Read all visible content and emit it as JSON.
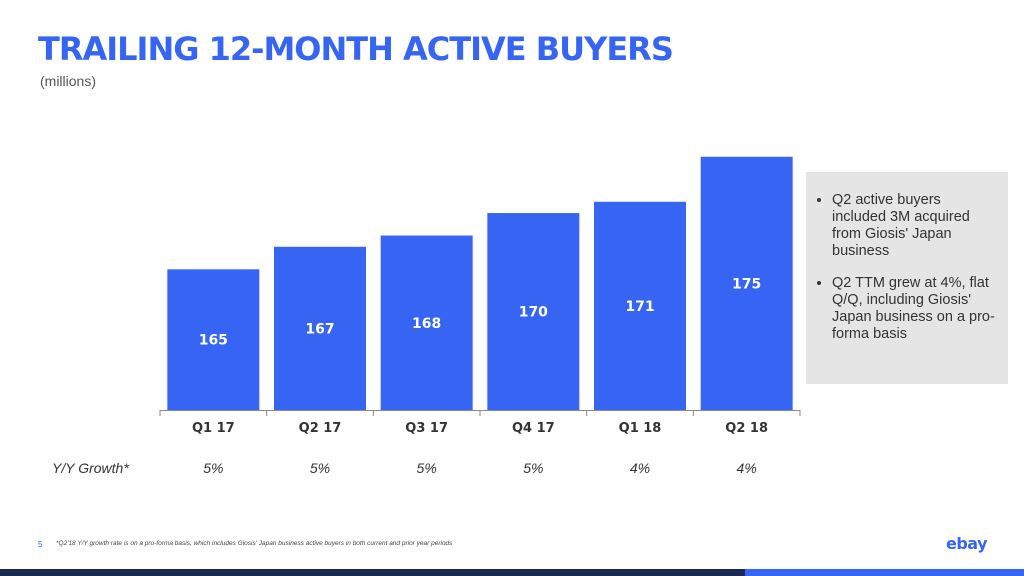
{
  "page": {
    "title": "TRAILING 12-MONTH ACTIVE BUYERS",
    "subtitle": "(millions)",
    "page_number": "5",
    "footnote": "*Q2'18 Y/Y growth rate is on a pro-forma basis, which includes Giosis' Japan business active buyers in both current and prior year periods",
    "logo": "ebay"
  },
  "notes": {
    "items": [
      "Q2 active buyers included 3M acquired from Giosis' Japan business",
      "Q2 TTM grew at 4%, flat Q/Q, including Giosis' Japan business on a pro-forma basis"
    ]
  },
  "colors": {
    "bar": "#3665f3",
    "title": "#3665f3",
    "note_bg": "#e5e5e5",
    "footer_dark": "#1a2a52"
  },
  "chart_data": {
    "type": "bar",
    "title": "TRAILING 12-MONTH ACTIVE BUYERS",
    "ylabel": "",
    "xlabel": "",
    "categories": [
      "Q1 17",
      "Q2 17",
      "Q3 17",
      "Q4 17",
      "Q1 18",
      "Q2 18"
    ],
    "values": [
      165,
      167,
      168,
      170,
      171,
      175
    ],
    "ylim": [
      152.5,
      175.6
    ],
    "grid": false,
    "growth_label": "Y/Y Growth*",
    "growth": [
      "5%",
      "5%",
      "5%",
      "5%",
      "4%",
      "4%"
    ]
  }
}
